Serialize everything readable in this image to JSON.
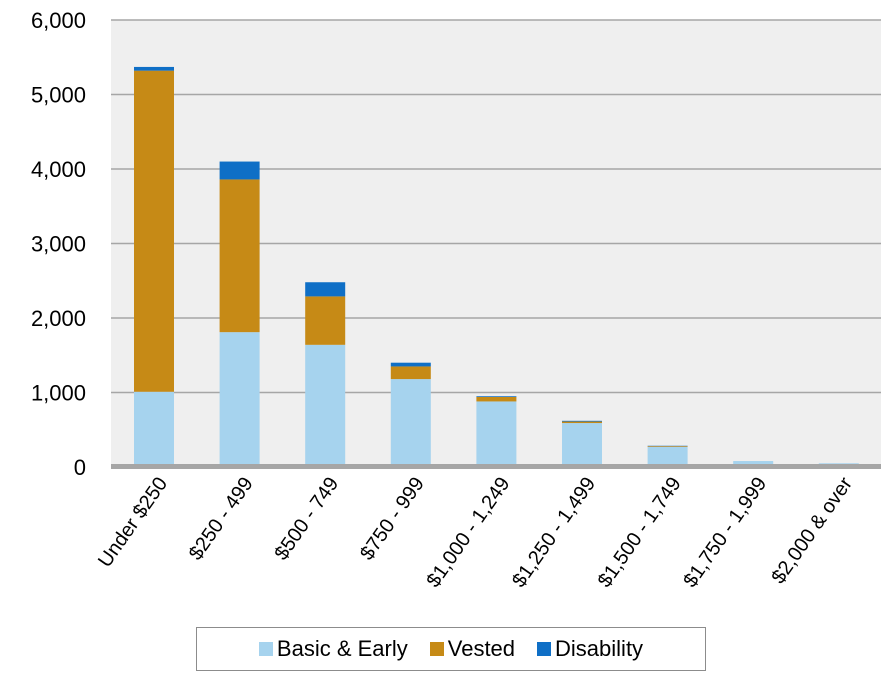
{
  "chart_data": {
    "type": "bar",
    "stacked": true,
    "categories": [
      "Under $250",
      "$250 - 499",
      "$500 - 749",
      "$750 - 999",
      "$1,000 - 1,249",
      "$1,250 - 1,499",
      "$1,500 - 1,749",
      "$1,750 - 1,999",
      "$2,000 & over"
    ],
    "series": [
      {
        "name": "Basic & Early",
        "color": "#a6d3ee",
        "values": [
          1010,
          1810,
          1640,
          1180,
          880,
          590,
          270,
          80,
          50
        ]
      },
      {
        "name": "Vested",
        "color": "#c68a16",
        "values": [
          4310,
          2050,
          650,
          170,
          60,
          20,
          10,
          0,
          0
        ]
      },
      {
        "name": "Disability",
        "color": "#0f6fc6",
        "values": [
          50,
          240,
          190,
          50,
          10,
          10,
          5,
          0,
          0
        ]
      }
    ],
    "ylim": [
      0,
      6000
    ],
    "yticks": [
      0,
      1000,
      2000,
      3000,
      4000,
      5000,
      6000
    ],
    "ytick_labels": [
      "0",
      "1,000",
      "2,000",
      "3,000",
      "4,000",
      "5,000",
      "6,000"
    ],
    "grid": true,
    "legend_position": "bottom",
    "plot_background": "#efefef"
  }
}
